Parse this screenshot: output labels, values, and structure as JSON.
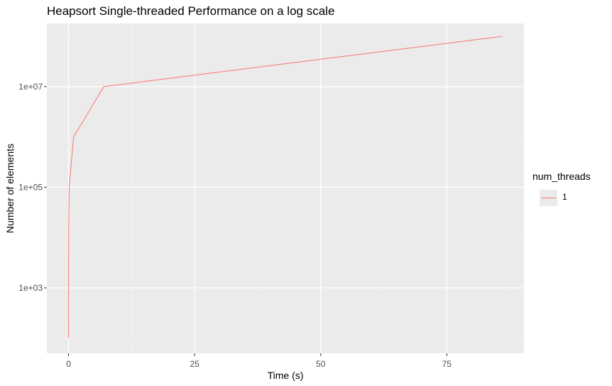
{
  "chart_data": {
    "type": "line",
    "title": "Heapsort Single-threaded Performance on a log scale",
    "xlabel": "Time (s)",
    "ylabel": "Number of elements",
    "x_ticks": [
      0,
      25,
      50,
      75
    ],
    "x_tick_labels": [
      "0",
      "25",
      "50",
      "75"
    ],
    "y_ticks": [
      1000,
      100000,
      10000000
    ],
    "y_tick_labels": [
      "1e+03",
      "1e+05",
      "1e+07"
    ],
    "y_scale": "log10",
    "xlim": [
      -4.3,
      90.3
    ],
    "ylim": [
      50,
      180000000
    ],
    "grid": true,
    "legend": {
      "title": "num_threads",
      "placement": "right",
      "entries": [
        {
          "label": "1",
          "color": "#F8766D"
        }
      ]
    },
    "series": [
      {
        "name": "1",
        "color": "#F8766D",
        "x": [
          0.0,
          0.003,
          0.02,
          0.12,
          1.0,
          7.0,
          86.0
        ],
        "y": [
          100,
          1000,
          10000,
          100000,
          1000000,
          10000000,
          100000000
        ]
      }
    ]
  }
}
